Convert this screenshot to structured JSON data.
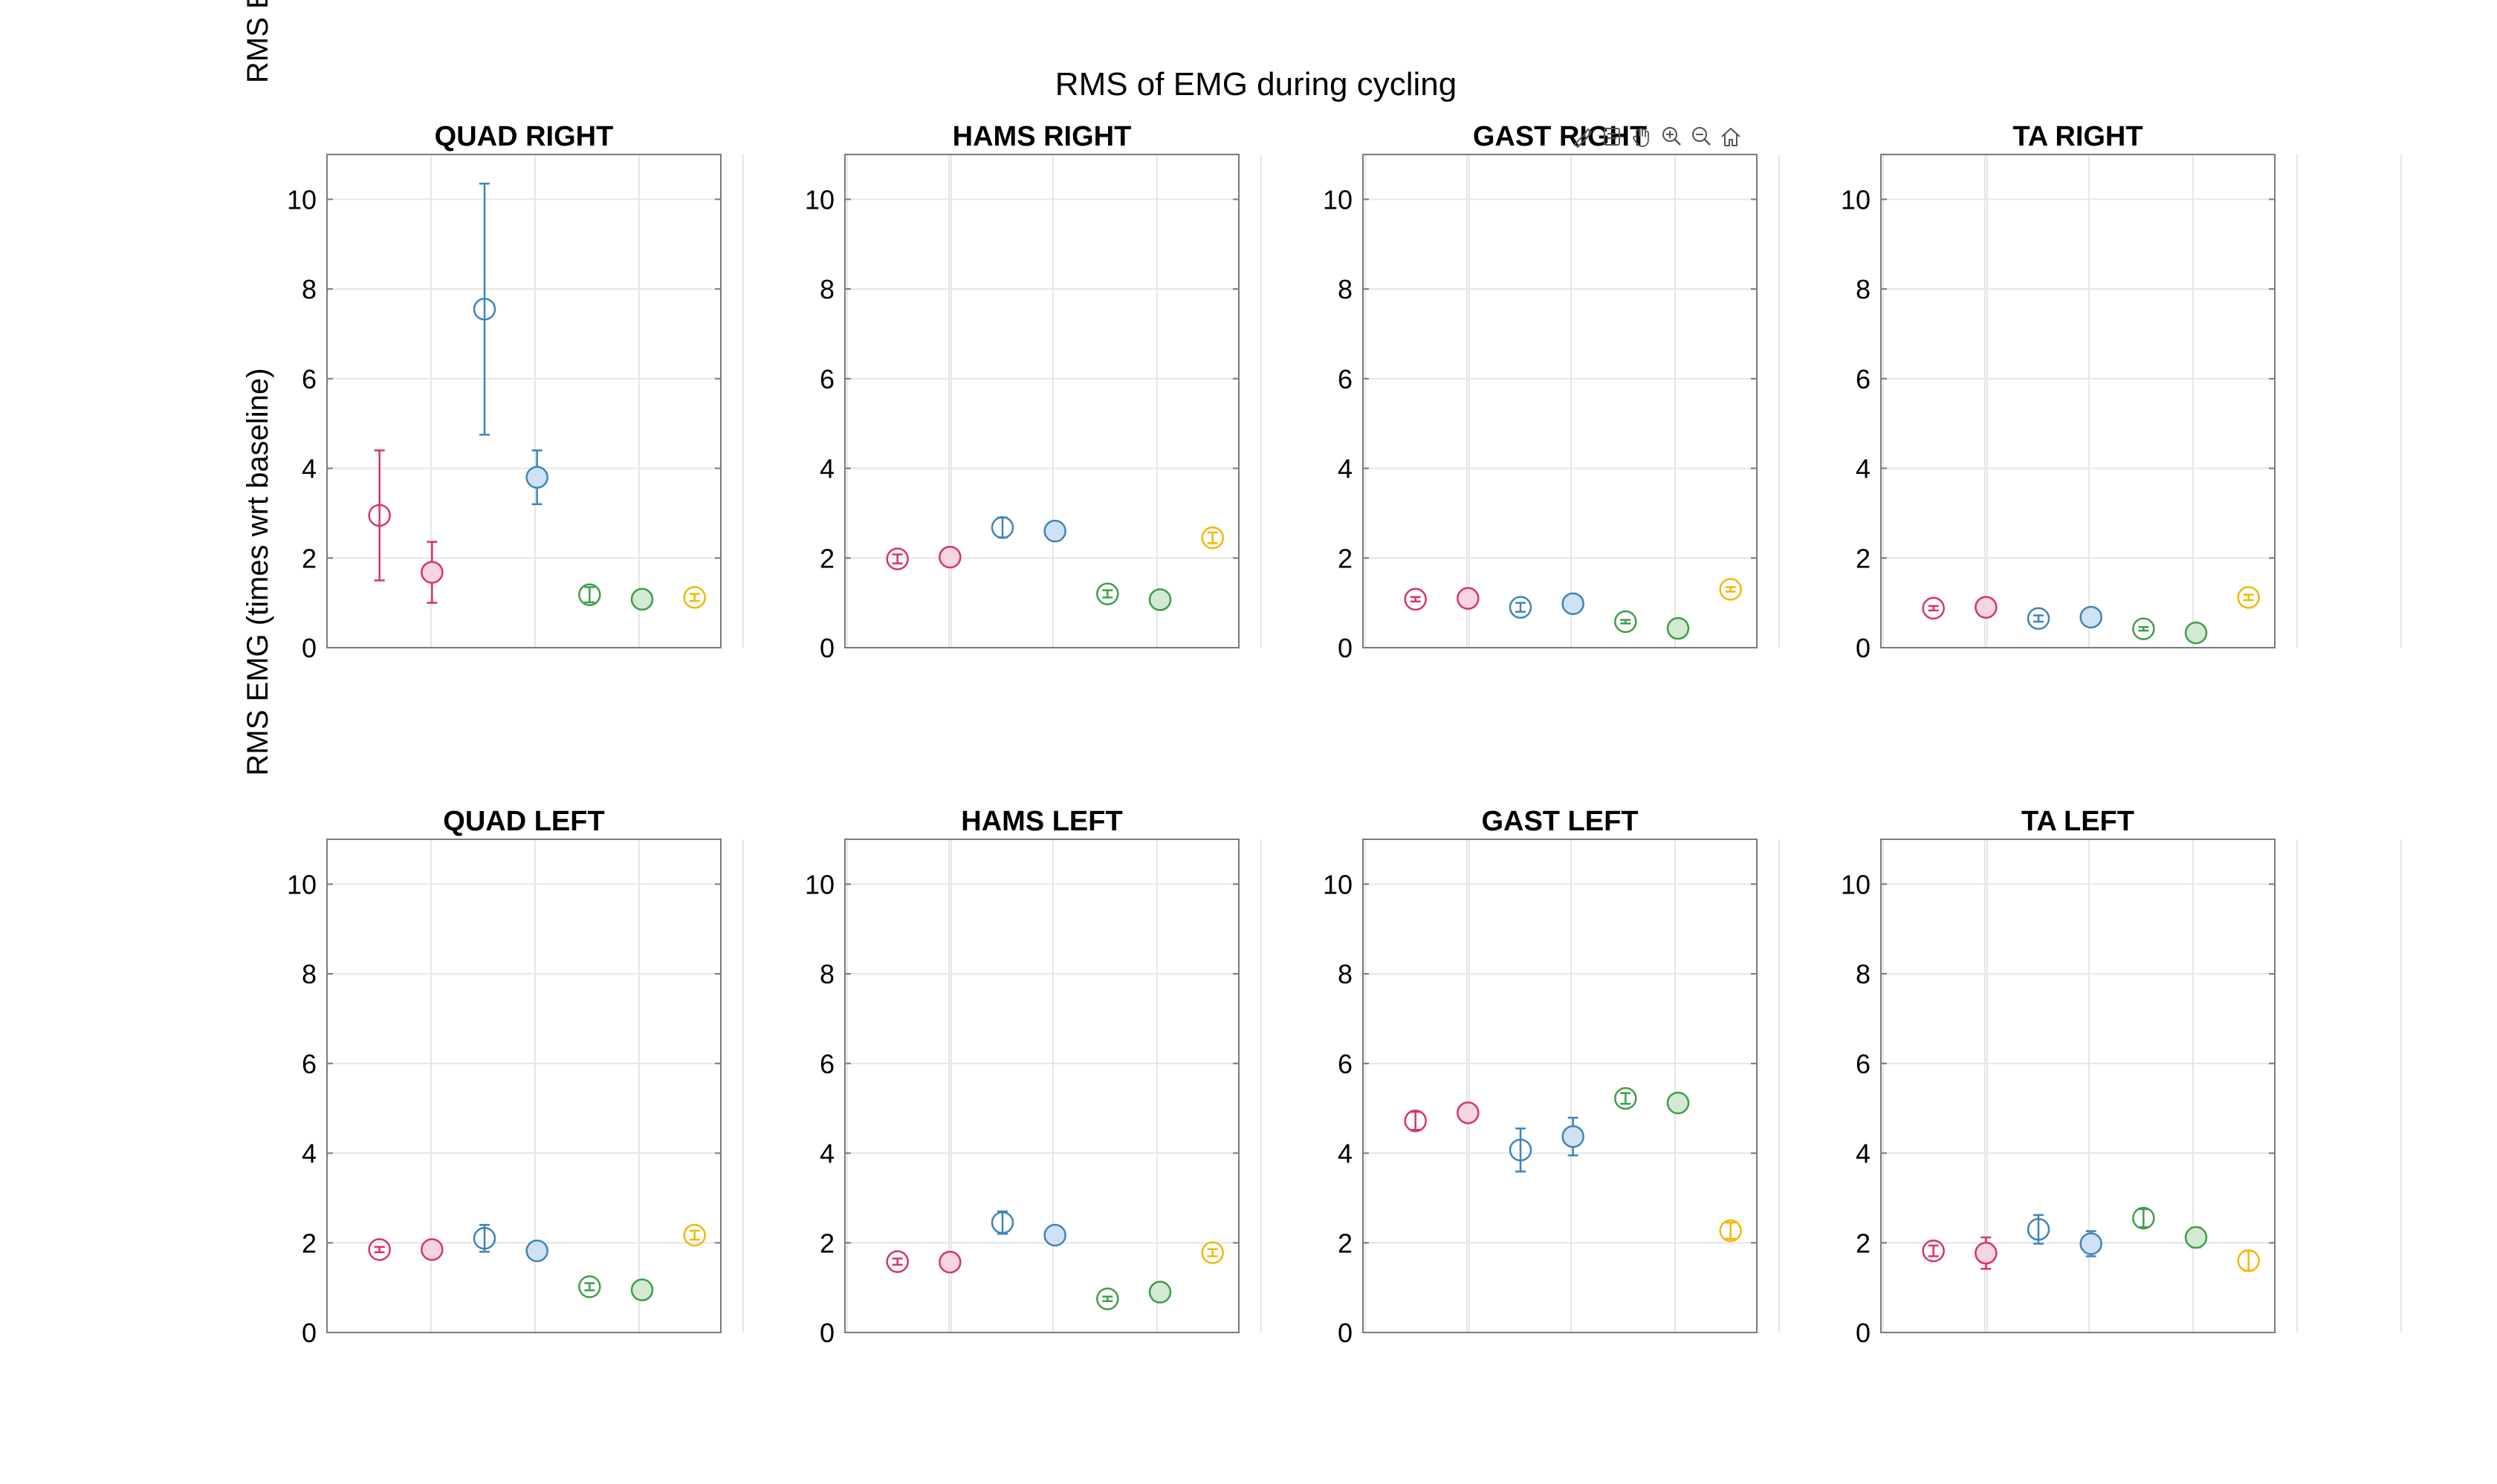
{
  "figure": {
    "title": "RMS of EMG during cycling",
    "ylabel_main": "RMS EMG (times wrt baseline)",
    "ylabel_clipped": "RMS E"
  },
  "toolbar": {
    "buttons": [
      {
        "name": "brush-icon"
      },
      {
        "name": "datatip-icon"
      },
      {
        "name": "pan-hand-icon"
      },
      {
        "name": "zoom-in-icon"
      },
      {
        "name": "zoom-out-icon"
      },
      {
        "name": "home-icon"
      }
    ]
  },
  "colors": {
    "pink": "#D6336C",
    "pink_fill": "#F6D5E2",
    "blue": "#3F84B8",
    "blue_fill": "#CFE2F3",
    "green": "#3E9E48",
    "green_fill": "#D3E9D3",
    "yellow": "#F2B705",
    "axis": "#7a7a7a",
    "grid": "#e6e6e6"
  },
  "chart_data": [
    {
      "type": "scatter",
      "title": "QUAD RIGHT",
      "ylim": [
        0,
        11
      ],
      "yticks": [
        "0",
        "2",
        "4",
        "6",
        "8",
        "10"
      ],
      "grid": true,
      "points": [
        {
          "x": 1,
          "y": 2.95,
          "err": 1.45,
          "color": "pink",
          "filled": false
        },
        {
          "x": 2,
          "y": 1.68,
          "err": 0.68,
          "color": "pink",
          "filled": true
        },
        {
          "x": 3,
          "y": 7.55,
          "err": 2.8,
          "color": "blue",
          "filled": false
        },
        {
          "x": 4,
          "y": 3.8,
          "err": 0.6,
          "color": "blue",
          "filled": true
        },
        {
          "x": 5,
          "y": 1.18,
          "err": 0.17,
          "color": "green",
          "filled": false
        },
        {
          "x": 6,
          "y": 1.08,
          "err": 0.1,
          "color": "green",
          "filled": true
        },
        {
          "x": 7,
          "y": 1.12,
          "err": 0.08,
          "color": "yellow",
          "filled": false
        }
      ]
    },
    {
      "type": "scatter",
      "title": "HAMS RIGHT",
      "ylim": [
        0,
        11
      ],
      "yticks": [
        "0",
        "2",
        "4",
        "6",
        "8",
        "10"
      ],
      "grid": true,
      "points": [
        {
          "x": 1,
          "y": 1.98,
          "err": 0.1,
          "color": "pink",
          "filled": false
        },
        {
          "x": 2,
          "y": 2.02,
          "err": 0.1,
          "color": "pink",
          "filled": true
        },
        {
          "x": 3,
          "y": 2.68,
          "err": 0.22,
          "color": "blue",
          "filled": false
        },
        {
          "x": 4,
          "y": 2.6,
          "err": 0.12,
          "color": "blue",
          "filled": true
        },
        {
          "x": 5,
          "y": 1.2,
          "err": 0.08,
          "color": "green",
          "filled": false
        },
        {
          "x": 6,
          "y": 1.07,
          "err": 0.1,
          "color": "green",
          "filled": true
        },
        {
          "x": 7,
          "y": 2.45,
          "err": 0.12,
          "color": "yellow",
          "filled": false
        }
      ]
    },
    {
      "type": "scatter",
      "title": "GAST RIGHT",
      "ylim": [
        0,
        11
      ],
      "yticks": [
        "0",
        "2",
        "4",
        "6",
        "8",
        "10"
      ],
      "grid": true,
      "points": [
        {
          "x": 1,
          "y": 1.08,
          "err": 0.05,
          "color": "pink",
          "filled": false
        },
        {
          "x": 2,
          "y": 1.1,
          "err": 0.05,
          "color": "pink",
          "filled": true
        },
        {
          "x": 3,
          "y": 0.9,
          "err": 0.1,
          "color": "blue",
          "filled": false
        },
        {
          "x": 4,
          "y": 0.98,
          "err": 0.1,
          "color": "blue",
          "filled": true
        },
        {
          "x": 5,
          "y": 0.58,
          "err": 0.04,
          "color": "green",
          "filled": false
        },
        {
          "x": 6,
          "y": 0.43,
          "err": 0.05,
          "color": "green",
          "filled": true
        },
        {
          "x": 7,
          "y": 1.3,
          "err": 0.05,
          "color": "yellow",
          "filled": false
        }
      ]
    },
    {
      "type": "scatter",
      "title": "TA RIGHT",
      "ylim": [
        0,
        11
      ],
      "yticks": [
        "0",
        "2",
        "4",
        "6",
        "8",
        "10"
      ],
      "grid": true,
      "points": [
        {
          "x": 1,
          "y": 0.88,
          "err": 0.05,
          "color": "pink",
          "filled": false
        },
        {
          "x": 2,
          "y": 0.9,
          "err": 0.05,
          "color": "pink",
          "filled": true
        },
        {
          "x": 3,
          "y": 0.65,
          "err": 0.07,
          "color": "blue",
          "filled": false
        },
        {
          "x": 4,
          "y": 0.68,
          "err": 0.07,
          "color": "blue",
          "filled": true
        },
        {
          "x": 5,
          "y": 0.42,
          "err": 0.04,
          "color": "green",
          "filled": false
        },
        {
          "x": 6,
          "y": 0.33,
          "err": 0.1,
          "color": "green",
          "filled": true
        },
        {
          "x": 7,
          "y": 1.12,
          "err": 0.06,
          "color": "yellow",
          "filled": false
        }
      ]
    },
    {
      "type": "scatter",
      "title": "QUAD LEFT",
      "ylim": [
        0,
        11
      ],
      "yticks": [
        "0",
        "2",
        "4",
        "6",
        "8",
        "10"
      ],
      "grid": true,
      "points": [
        {
          "x": 1,
          "y": 1.85,
          "err": 0.06,
          "color": "pink",
          "filled": false
        },
        {
          "x": 2,
          "y": 1.85,
          "err": 0.06,
          "color": "pink",
          "filled": true
        },
        {
          "x": 3,
          "y": 2.1,
          "err": 0.3,
          "color": "blue",
          "filled": false
        },
        {
          "x": 4,
          "y": 1.82,
          "err": 0.12,
          "color": "blue",
          "filled": true
        },
        {
          "x": 5,
          "y": 1.02,
          "err": 0.08,
          "color": "green",
          "filled": false
        },
        {
          "x": 6,
          "y": 0.95,
          "err": 0.06,
          "color": "green",
          "filled": true
        },
        {
          "x": 7,
          "y": 2.17,
          "err": 0.1,
          "color": "yellow",
          "filled": false
        }
      ]
    },
    {
      "type": "scatter",
      "title": "HAMS LEFT",
      "ylim": [
        0,
        11
      ],
      "yticks": [
        "0",
        "2",
        "4",
        "6",
        "8",
        "10"
      ],
      "grid": true,
      "points": [
        {
          "x": 1,
          "y": 1.58,
          "err": 0.07,
          "color": "pink",
          "filled": false
        },
        {
          "x": 2,
          "y": 1.57,
          "err": 0.07,
          "color": "pink",
          "filled": true
        },
        {
          "x": 3,
          "y": 2.45,
          "err": 0.25,
          "color": "blue",
          "filled": false
        },
        {
          "x": 4,
          "y": 2.17,
          "err": 0.1,
          "color": "blue",
          "filled": true
        },
        {
          "x": 5,
          "y": 0.75,
          "err": 0.05,
          "color": "green",
          "filled": false
        },
        {
          "x": 6,
          "y": 0.9,
          "err": 0.05,
          "color": "green",
          "filled": true
        },
        {
          "x": 7,
          "y": 1.78,
          "err": 0.08,
          "color": "yellow",
          "filled": false
        }
      ]
    },
    {
      "type": "scatter",
      "title": "GAST LEFT",
      "ylim": [
        0,
        11
      ],
      "yticks": [
        "0",
        "2",
        "4",
        "6",
        "8",
        "10"
      ],
      "grid": true,
      "points": [
        {
          "x": 1,
          "y": 4.72,
          "err": 0.2,
          "color": "pink",
          "filled": false
        },
        {
          "x": 2,
          "y": 4.9,
          "err": 0.12,
          "color": "pink",
          "filled": true
        },
        {
          "x": 3,
          "y": 4.07,
          "err": 0.48,
          "color": "blue",
          "filled": false
        },
        {
          "x": 4,
          "y": 4.37,
          "err": 0.42,
          "color": "blue",
          "filled": true
        },
        {
          "x": 5,
          "y": 5.22,
          "err": 0.12,
          "color": "green",
          "filled": false
        },
        {
          "x": 6,
          "y": 5.12,
          "err": 0.1,
          "color": "green",
          "filled": true
        },
        {
          "x": 7,
          "y": 2.27,
          "err": 0.18,
          "color": "yellow",
          "filled": false
        }
      ]
    },
    {
      "type": "scatter",
      "title": "TA LEFT",
      "ylim": [
        0,
        11
      ],
      "yticks": [
        "0",
        "2",
        "4",
        "6",
        "8",
        "10"
      ],
      "grid": true,
      "points": [
        {
          "x": 1,
          "y": 1.82,
          "err": 0.12,
          "color": "pink",
          "filled": false
        },
        {
          "x": 2,
          "y": 1.77,
          "err": 0.35,
          "color": "pink",
          "filled": true
        },
        {
          "x": 3,
          "y": 2.3,
          "err": 0.32,
          "color": "blue",
          "filled": false
        },
        {
          "x": 4,
          "y": 1.98,
          "err": 0.28,
          "color": "blue",
          "filled": true
        },
        {
          "x": 5,
          "y": 2.55,
          "err": 0.2,
          "color": "green",
          "filled": false
        },
        {
          "x": 6,
          "y": 2.12,
          "err": 0.22,
          "color": "green",
          "filled": true
        },
        {
          "x": 7,
          "y": 1.6,
          "err": 0.22,
          "color": "yellow",
          "filled": false
        }
      ]
    }
  ]
}
